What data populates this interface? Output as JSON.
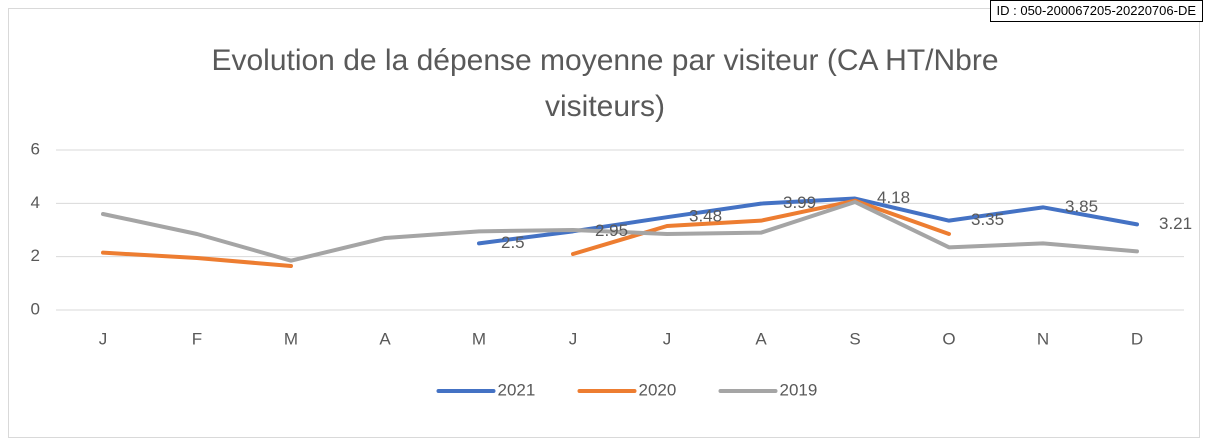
{
  "stamp": "ID : 050-200067205-20220706-DE",
  "chart_data": {
    "type": "line",
    "title": "Evolution de la dépense moyenne par visiteur (CA HT/Nbre visiteurs)",
    "categories": [
      "J",
      "F",
      "M",
      "A",
      "M",
      "J",
      "J",
      "A",
      "S",
      "O",
      "N",
      "D"
    ],
    "series": [
      {
        "name": "2021",
        "color": "#4472c4",
        "data_labels": true,
        "values": [
          null,
          null,
          null,
          null,
          2.5,
          2.95,
          3.48,
          3.99,
          4.18,
          3.35,
          3.85,
          3.21
        ]
      },
      {
        "name": "2020",
        "color": "#ed7d31",
        "values": [
          2.15,
          1.95,
          1.65,
          null,
          null,
          2.1,
          3.15,
          3.35,
          4.1,
          2.85,
          null,
          null
        ]
      },
      {
        "name": "2019",
        "color": "#a5a5a5",
        "values": [
          3.6,
          2.85,
          1.85,
          2.7,
          2.95,
          3.0,
          2.85,
          2.9,
          4.05,
          2.35,
          2.5,
          2.2
        ]
      }
    ],
    "ylim": [
      0,
      6
    ],
    "yticks": [
      0,
      2,
      4,
      6
    ],
    "grid": true,
    "legend": "bottom"
  }
}
